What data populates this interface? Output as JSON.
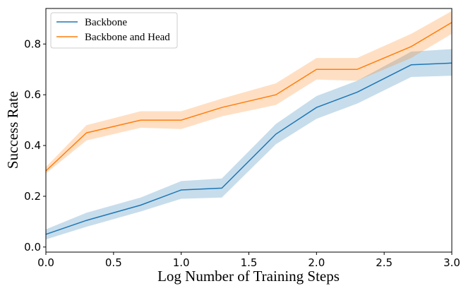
{
  "chart_data": {
    "type": "line",
    "title": "",
    "xlabel": "Log Number of Training Steps",
    "ylabel": "Success Rate",
    "xlim": [
      0.0,
      3.0
    ],
    "ylim": [
      -0.02,
      0.94
    ],
    "xticks": [
      "0.0",
      "0.5",
      "1.0",
      "1.5",
      "2.0",
      "2.5",
      "3.0"
    ],
    "yticks": [
      "0.0",
      "0.2",
      "0.4",
      "0.6",
      "0.8"
    ],
    "grid": false,
    "legend_position": "top-left",
    "series": [
      {
        "name": "Backbone",
        "color": "#1f77b4",
        "x": [
          0.0,
          0.3,
          0.7,
          1.0,
          1.3,
          1.7,
          2.0,
          2.3,
          2.7,
          3.0
        ],
        "y": [
          0.05,
          0.105,
          0.165,
          0.225,
          0.232,
          0.445,
          0.55,
          0.61,
          0.718,
          0.725
        ],
        "lower": [
          0.03,
          0.08,
          0.14,
          0.19,
          0.195,
          0.405,
          0.505,
          0.565,
          0.67,
          0.675
        ],
        "upper": [
          0.07,
          0.135,
          0.195,
          0.26,
          0.27,
          0.485,
          0.595,
          0.655,
          0.77,
          0.78
        ]
      },
      {
        "name": "Backbone and Head",
        "color": "#ff7f0e",
        "x": [
          0.0,
          0.3,
          0.7,
          1.0,
          1.3,
          1.7,
          2.0,
          2.3,
          2.7,
          3.0
        ],
        "y": [
          0.3,
          0.45,
          0.5,
          0.5,
          0.55,
          0.6,
          0.7,
          0.7,
          0.79,
          0.885
        ],
        "lower": [
          0.29,
          0.42,
          0.47,
          0.465,
          0.515,
          0.56,
          0.66,
          0.655,
          0.745,
          0.84
        ],
        "upper": [
          0.315,
          0.48,
          0.535,
          0.535,
          0.585,
          0.645,
          0.745,
          0.745,
          0.84,
          0.93
        ]
      }
    ]
  }
}
